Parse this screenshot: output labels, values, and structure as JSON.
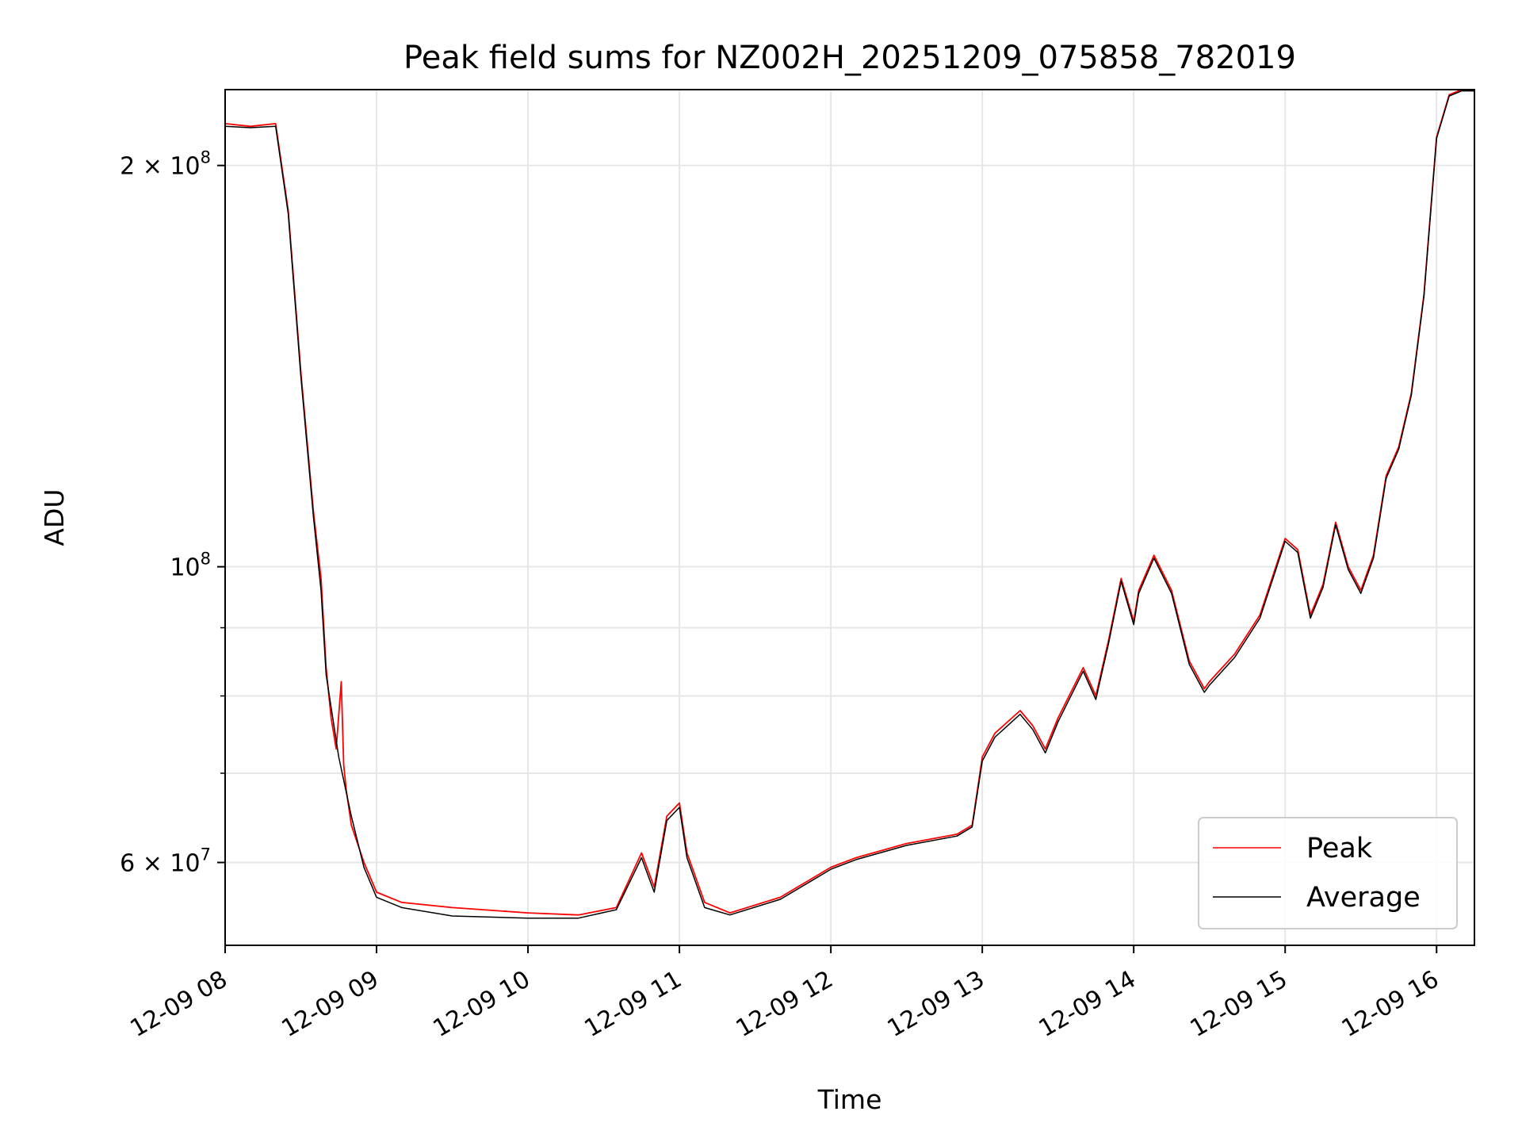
{
  "chart_data": {
    "type": "line",
    "title": "Peak field sums for NZ002H_20251209_075858_782019",
    "xlabel": "Time",
    "ylabel": "ADU",
    "yscale": "log",
    "grid": true,
    "legend_position": "lower-right",
    "xlim": [
      "12-09 08:00",
      "12-09 16:15"
    ],
    "ylim": [
      52000000,
      228000000
    ],
    "x_ticks": [
      {
        "x": "12-09 08:00",
        "label": "12-09 08"
      },
      {
        "x": "12-09 09:00",
        "label": "12-09 09"
      },
      {
        "x": "12-09 10:00",
        "label": "12-09 10"
      },
      {
        "x": "12-09 11:00",
        "label": "12-09 11"
      },
      {
        "x": "12-09 12:00",
        "label": "12-09 12"
      },
      {
        "x": "12-09 13:00",
        "label": "12-09 13"
      },
      {
        "x": "12-09 14:00",
        "label": "12-09 14"
      },
      {
        "x": "12-09 15:00",
        "label": "12-09 15"
      },
      {
        "x": "12-09 16:00",
        "label": "12-09 16"
      }
    ],
    "y_major_ticks": [
      {
        "value": 60000000,
        "base": "6 × 10",
        "exp": "7"
      },
      {
        "value": 100000000,
        "base": "10",
        "exp": "8"
      },
      {
        "value": 200000000,
        "base": "2 × 10",
        "exp": "8"
      }
    ],
    "y_minor_ticks": [
      70000000,
      80000000,
      90000000
    ],
    "series": [
      {
        "name": "Peak",
        "color": "#ff0000",
        "x": [
          "12-09 08:00",
          "12-09 08:10",
          "12-09 08:20",
          "12-09 08:25",
          "12-09 08:30",
          "12-09 08:35",
          "12-09 08:38",
          "12-09 08:40",
          "12-09 08:42",
          "12-09 08:44",
          "12-09 08:46",
          "12-09 08:47",
          "12-09 08:48",
          "12-09 08:50",
          "12-09 08:55",
          "12-09 09:00",
          "12-09 09:10",
          "12-09 09:30",
          "12-09 10:00",
          "12-09 10:20",
          "12-09 10:35",
          "12-09 10:45",
          "12-09 10:50",
          "12-09 10:55",
          "12-09 11:00",
          "12-09 11:03",
          "12-09 11:10",
          "12-09 11:20",
          "12-09 11:40",
          "12-09 12:00",
          "12-09 12:10",
          "12-09 12:30",
          "12-09 12:50",
          "12-09 12:56",
          "12-09 13:00",
          "12-09 13:05",
          "12-09 13:15",
          "12-09 13:20",
          "12-09 13:25",
          "12-09 13:30",
          "12-09 13:40",
          "12-09 13:45",
          "12-09 13:50",
          "12-09 13:55",
          "12-09 14:00",
          "12-09 14:02",
          "12-09 14:08",
          "12-09 14:15",
          "12-09 14:22",
          "12-09 14:28",
          "12-09 14:30",
          "12-09 14:40",
          "12-09 14:50",
          "12-09 15:00",
          "12-09 15:05",
          "12-09 15:10",
          "12-09 15:15",
          "12-09 15:20",
          "12-09 15:25",
          "12-09 15:30",
          "12-09 15:35",
          "12-09 15:40",
          "12-09 15:45",
          "12-09 15:50",
          "12-09 15:55",
          "12-09 16:00",
          "12-09 16:05",
          "12-09 16:10",
          "12-09 16:15"
        ],
        "values": [
          215000000,
          214000000,
          215000000,
          185000000,
          140000000,
          110000000,
          98000000,
          84000000,
          77000000,
          73000000,
          82000000,
          71000000,
          68000000,
          64000000,
          60000000,
          57000000,
          56000000,
          55500000,
          55000000,
          54800000,
          55500000,
          61000000,
          57500000,
          65000000,
          66500000,
          61000000,
          56000000,
          55000000,
          56500000,
          59500000,
          60500000,
          62000000,
          63000000,
          64000000,
          72000000,
          75000000,
          78000000,
          76000000,
          73000000,
          77000000,
          84000000,
          80000000,
          88000000,
          98000000,
          91000000,
          96000000,
          102000000,
          96000000,
          85000000,
          81000000,
          82000000,
          86000000,
          92000000,
          105000000,
          103000000,
          92000000,
          97000000,
          108000000,
          100000000,
          96000000,
          102000000,
          117000000,
          123000000,
          135000000,
          160000000,
          210000000,
          226000000,
          228000000,
          228000000
        ]
      },
      {
        "name": "Average",
        "color": "#000000",
        "x": [
          "12-09 08:00",
          "12-09 08:10",
          "12-09 08:20",
          "12-09 08:25",
          "12-09 08:30",
          "12-09 08:35",
          "12-09 08:38",
          "12-09 08:40",
          "12-09 08:45",
          "12-09 08:50",
          "12-09 08:55",
          "12-09 09:00",
          "12-09 09:10",
          "12-09 09:30",
          "12-09 10:00",
          "12-09 10:20",
          "12-09 10:35",
          "12-09 10:45",
          "12-09 10:50",
          "12-09 10:55",
          "12-09 11:00",
          "12-09 11:03",
          "12-09 11:10",
          "12-09 11:20",
          "12-09 11:40",
          "12-09 12:00",
          "12-09 12:10",
          "12-09 12:30",
          "12-09 12:50",
          "12-09 12:56",
          "12-09 13:00",
          "12-09 13:05",
          "12-09 13:15",
          "12-09 13:20",
          "12-09 13:25",
          "12-09 13:30",
          "12-09 13:40",
          "12-09 13:45",
          "12-09 13:50",
          "12-09 13:55",
          "12-09 14:00",
          "12-09 14:02",
          "12-09 14:08",
          "12-09 14:15",
          "12-09 14:22",
          "12-09 14:28",
          "12-09 14:30",
          "12-09 14:40",
          "12-09 14:50",
          "12-09 15:00",
          "12-09 15:05",
          "12-09 15:10",
          "12-09 15:15",
          "12-09 15:20",
          "12-09 15:25",
          "12-09 15:30",
          "12-09 15:35",
          "12-09 15:40",
          "12-09 15:45",
          "12-09 15:50",
          "12-09 15:55",
          "12-09 16:00",
          "12-09 16:05",
          "12-09 16:10",
          "12-09 16:15"
        ],
        "values": [
          214000000,
          213500000,
          214000000,
          184000000,
          139000000,
          109000000,
          96000000,
          83000000,
          72000000,
          65000000,
          59500000,
          56500000,
          55500000,
          54700000,
          54500000,
          54500000,
          55300000,
          60500000,
          57000000,
          64500000,
          66000000,
          60500000,
          55500000,
          54800000,
          56300000,
          59300000,
          60300000,
          61800000,
          62800000,
          63800000,
          71500000,
          74500000,
          77500000,
          75500000,
          72500000,
          76500000,
          83500000,
          79500000,
          87500000,
          97500000,
          90500000,
          95500000,
          101500000,
          95500000,
          84500000,
          80500000,
          81500000,
          85500000,
          91500000,
          104500000,
          102500000,
          91500000,
          96500000,
          107500000,
          99500000,
          95500000,
          101500000,
          116500000,
          122500000,
          134500000,
          159500000,
          209500000,
          225500000,
          227500000,
          227500000
        ]
      }
    ]
  }
}
